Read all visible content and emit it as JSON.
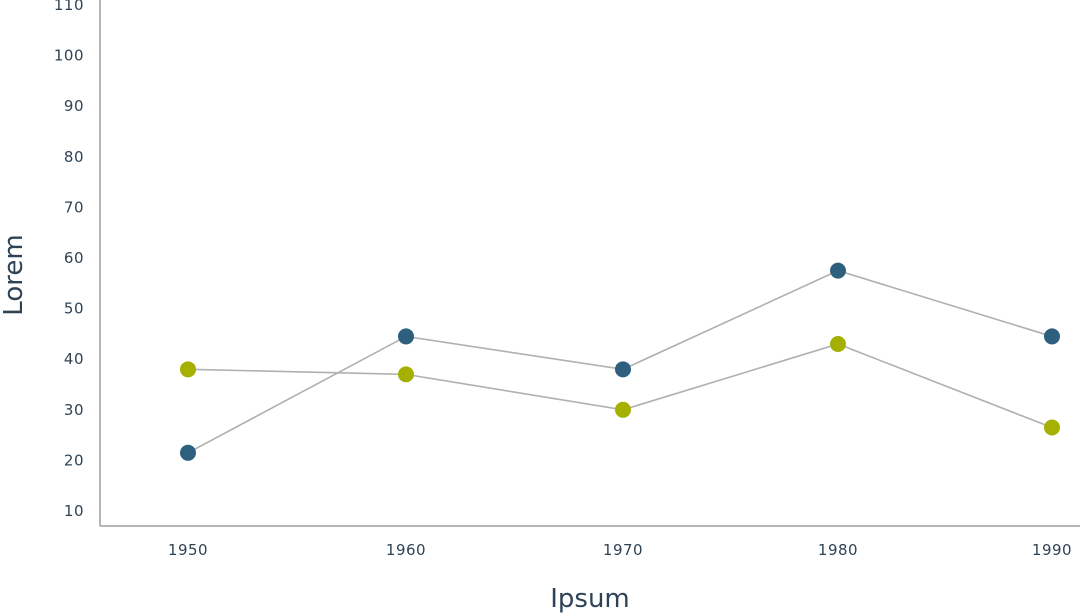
{
  "chart_data": {
    "type": "line",
    "xlabel": "Ipsum",
    "ylabel": "Lorem",
    "categories": [
      "1950",
      "1960",
      "1970",
      "1980",
      "1990"
    ],
    "yticks": [
      10,
      20,
      30,
      40,
      50,
      60,
      70,
      80,
      90,
      100,
      110
    ],
    "ylim": [
      5,
      110
    ],
    "grid": false,
    "series": [
      {
        "color": "#2e5f7f",
        "values": [
          21.5,
          44.5,
          38,
          57.5,
          44.5
        ]
      },
      {
        "color": "#a6b000",
        "values": [
          38,
          37,
          30,
          43,
          26.5
        ]
      }
    ]
  }
}
